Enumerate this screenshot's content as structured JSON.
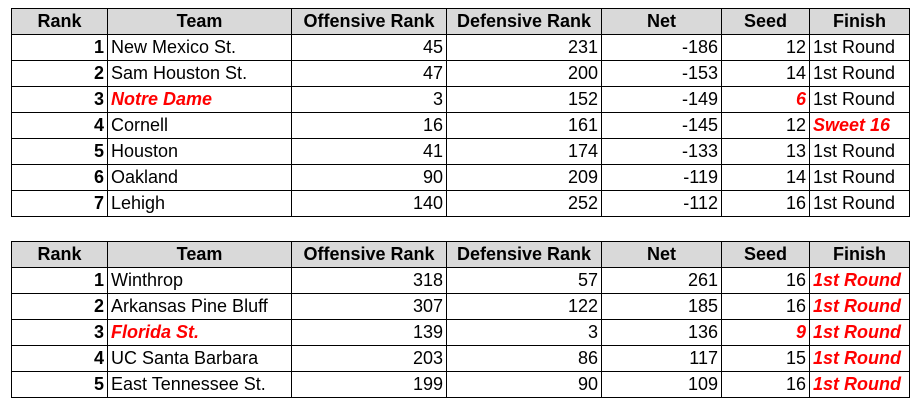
{
  "tables": [
    {
      "headers": [
        "Rank",
        "Team",
        "Offensive Rank",
        "Defensive Rank",
        "Net",
        "Seed",
        "Finish"
      ],
      "rows": [
        {
          "rank": "1",
          "team": "New Mexico St.",
          "off": "45",
          "def": "231",
          "net": "-186",
          "seed": "12",
          "finish": "1st Round"
        },
        {
          "rank": "2",
          "team": "Sam Houston St.",
          "off": "47",
          "def": "200",
          "net": "-153",
          "seed": "14",
          "finish": "1st Round"
        },
        {
          "rank": "3",
          "team": "Notre Dame",
          "off": "3",
          "def": "152",
          "net": "-149",
          "seed": "6",
          "finish": "1st Round"
        },
        {
          "rank": "4",
          "team": "Cornell",
          "off": "16",
          "def": "161",
          "net": "-145",
          "seed": "12",
          "finish": "Sweet 16"
        },
        {
          "rank": "5",
          "team": "Houston",
          "off": "41",
          "def": "174",
          "net": "-133",
          "seed": "13",
          "finish": "1st Round"
        },
        {
          "rank": "6",
          "team": "Oakland",
          "off": "90",
          "def": "209",
          "net": "-119",
          "seed": "14",
          "finish": "1st Round"
        },
        {
          "rank": "7",
          "team": "Lehigh",
          "off": "140",
          "def": "252",
          "net": "-112",
          "seed": "16",
          "finish": "1st Round"
        }
      ]
    },
    {
      "headers": [
        "Rank",
        "Team",
        "Offensive Rank",
        "Defensive Rank",
        "Net",
        "Seed",
        "Finish"
      ],
      "rows": [
        {
          "rank": "1",
          "team": "Winthrop",
          "off": "318",
          "def": "57",
          "net": "261",
          "seed": "16",
          "finish": "1st Round"
        },
        {
          "rank": "2",
          "team": "Arkansas Pine Bluff",
          "off": "307",
          "def": "122",
          "net": "185",
          "seed": "16",
          "finish": "1st Round"
        },
        {
          "rank": "3",
          "team": "Florida St.",
          "off": "139",
          "def": "3",
          "net": "136",
          "seed": "9",
          "finish": "1st Round"
        },
        {
          "rank": "4",
          "team": "UC Santa Barbara",
          "off": "203",
          "def": "86",
          "net": "117",
          "seed": "15",
          "finish": "1st Round"
        },
        {
          "rank": "5",
          "team": "East Tennessee St.",
          "off": "199",
          "def": "90",
          "net": "109",
          "seed": "16",
          "finish": "1st Round"
        }
      ]
    }
  ]
}
